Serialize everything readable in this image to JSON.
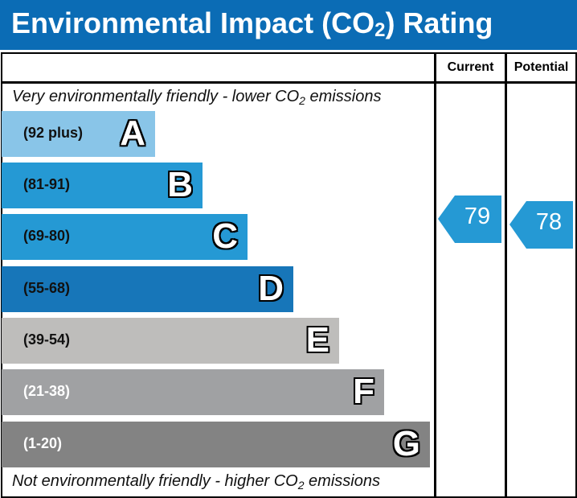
{
  "title": {
    "prefix": "Environmental Impact (CO",
    "sub": "2",
    "suffix": ") Rating"
  },
  "columns": {
    "current": "Current",
    "potential": "Potential"
  },
  "top_note": {
    "prefix": "Very environmentally friendly - lower CO",
    "sub": "2",
    "suffix": " emissions"
  },
  "bottom_note": {
    "prefix": "Not environmentally friendly - higher CO",
    "sub": "2",
    "suffix": " emissions"
  },
  "chart_data": {
    "type": "bar",
    "bands": [
      {
        "letter": "A",
        "range": "(92 plus)",
        "color": "#89c5e8",
        "text_color": "#111111"
      },
      {
        "letter": "B",
        "range": "(81-91)",
        "color": "#2599d4",
        "text_color": "#111111"
      },
      {
        "letter": "C",
        "range": "(69-80)",
        "color": "#2599d4",
        "text_color": "#111111"
      },
      {
        "letter": "D",
        "range": "(55-68)",
        "color": "#1776b9",
        "text_color": "#111111"
      },
      {
        "letter": "E",
        "range": "(39-54)",
        "color": "#bebdbb",
        "text_color": "#111111"
      },
      {
        "letter": "F",
        "range": "(21-38)",
        "color": "#a0a1a3",
        "text_color": "#ffffff"
      },
      {
        "letter": "G",
        "range": "(1-20)",
        "color": "#838383",
        "text_color": "#ffffff"
      }
    ],
    "current": {
      "value": "79",
      "band": "C",
      "color": "#2599d4"
    },
    "potential": {
      "value": "78",
      "band": "C",
      "color": "#2599d4"
    }
  }
}
